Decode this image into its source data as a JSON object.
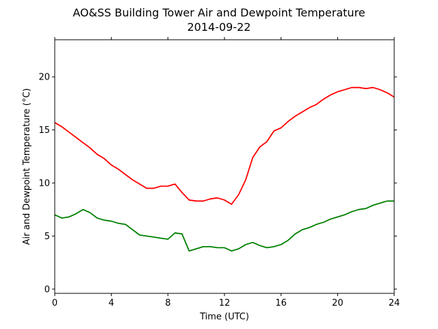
{
  "chart_data": {
    "type": "line",
    "title": "AO&SS Building Tower Air and Dewpoint Temperature",
    "subtitle": "2014-09-22",
    "xlabel": "Time (UTC)",
    "ylabel": "Air and Dewpoint Temperature (°C)",
    "xlim": [
      0,
      24
    ],
    "ylim": [
      -0.4,
      23.5
    ],
    "xticks": [
      0,
      4,
      8,
      12,
      16,
      20,
      24
    ],
    "yticks": [
      0,
      5,
      10,
      15,
      20
    ],
    "grid": false,
    "legend": "none",
    "series": [
      {
        "color": "#ff0000",
        "x": [
          0,
          0.5,
          1,
          1.5,
          2,
          2.5,
          3,
          3.5,
          4,
          4.5,
          5,
          5.5,
          6,
          6.5,
          7,
          7.5,
          8,
          8.5,
          9,
          9.5,
          10,
          10.5,
          11,
          11.5,
          12,
          12.5,
          13,
          13.5,
          14,
          14.5,
          15,
          15.5,
          16,
          16.5,
          17,
          17.5,
          18,
          18.5,
          19,
          19.5,
          20,
          20.5,
          21,
          21.5,
          22,
          22.5,
          23,
          23.5,
          24
        ],
        "y": [
          15.7,
          15.3,
          14.8,
          14.3,
          13.8,
          13.3,
          12.7,
          12.3,
          11.7,
          11.3,
          10.8,
          10.3,
          9.9,
          9.5,
          9.5,
          9.7,
          9.7,
          9.9,
          9.1,
          8.4,
          8.3,
          8.3,
          8.5,
          8.6,
          8.4,
          8.0,
          8.9,
          10.3,
          12.4,
          13.4,
          13.9,
          14.9,
          15.2,
          15.8,
          16.3,
          16.7,
          17.1,
          17.4,
          17.9,
          18.3,
          18.6,
          18.8,
          19.0,
          19.0,
          18.9,
          19.0,
          18.8,
          18.5,
          18.1
        ]
      },
      {
        "color": "#008000",
        "x": [
          0,
          0.5,
          1,
          1.5,
          2,
          2.5,
          3,
          3.5,
          4,
          4.5,
          5,
          5.5,
          6,
          6.5,
          7,
          7.5,
          8,
          8.5,
          9,
          9.5,
          10,
          10.5,
          11,
          11.5,
          12,
          12.5,
          13,
          13.5,
          14,
          14.5,
          15,
          15.5,
          16,
          16.5,
          17,
          17.5,
          18,
          18.5,
          19,
          19.5,
          20,
          20.5,
          21,
          21.5,
          22,
          22.5,
          23,
          23.5,
          24
        ],
        "y": [
          7.0,
          6.7,
          6.8,
          7.1,
          7.5,
          7.2,
          6.7,
          6.5,
          6.4,
          6.2,
          6.1,
          5.6,
          5.1,
          5.0,
          4.9,
          4.8,
          4.7,
          5.3,
          5.2,
          3.6,
          3.8,
          4.0,
          4.0,
          3.9,
          3.9,
          3.6,
          3.8,
          4.2,
          4.4,
          4.1,
          3.9,
          4.0,
          4.2,
          4.6,
          5.2,
          5.6,
          5.8,
          6.1,
          6.3,
          6.6,
          6.8,
          7.0,
          7.3,
          7.5,
          7.6,
          7.9,
          8.1,
          8.3,
          8.3
        ]
      }
    ]
  }
}
